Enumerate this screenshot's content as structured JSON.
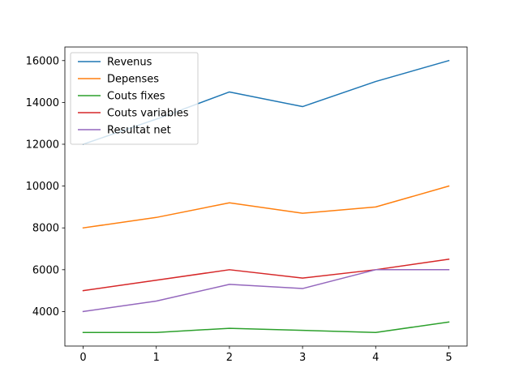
{
  "chart_data": {
    "type": "line",
    "x": [
      0,
      1,
      2,
      3,
      4,
      5
    ],
    "series": [
      {
        "name": "Revenus",
        "color": "#1f77b4",
        "values": [
          12000,
          13200,
          14500,
          13800,
          15000,
          16000
        ]
      },
      {
        "name": "Depenses",
        "color": "#ff7f0e",
        "values": [
          8000,
          8500,
          9200,
          8700,
          9000,
          10000
        ]
      },
      {
        "name": "Couts fixes",
        "color": "#2ca02c",
        "values": [
          3000,
          3000,
          3200,
          3100,
          3000,
          3500
        ]
      },
      {
        "name": "Couts variables",
        "color": "#d62728",
        "values": [
          5000,
          5500,
          6000,
          5600,
          6000,
          6500
        ]
      },
      {
        "name": "Resultat net",
        "color": "#9467bd",
        "values": [
          4000,
          4500,
          5300,
          5100,
          6000,
          6000
        ]
      }
    ],
    "xlim": [
      -0.25,
      5.25
    ],
    "ylim": [
      2350,
      16650
    ],
    "xticks": [
      "0",
      "1",
      "2",
      "3",
      "4",
      "5"
    ],
    "yticks": [
      "4000",
      "6000",
      "8000",
      "10000",
      "12000",
      "14000",
      "16000"
    ],
    "title": "",
    "xlabel": "",
    "ylabel": "",
    "grid": false,
    "legend_position": "top-left"
  }
}
